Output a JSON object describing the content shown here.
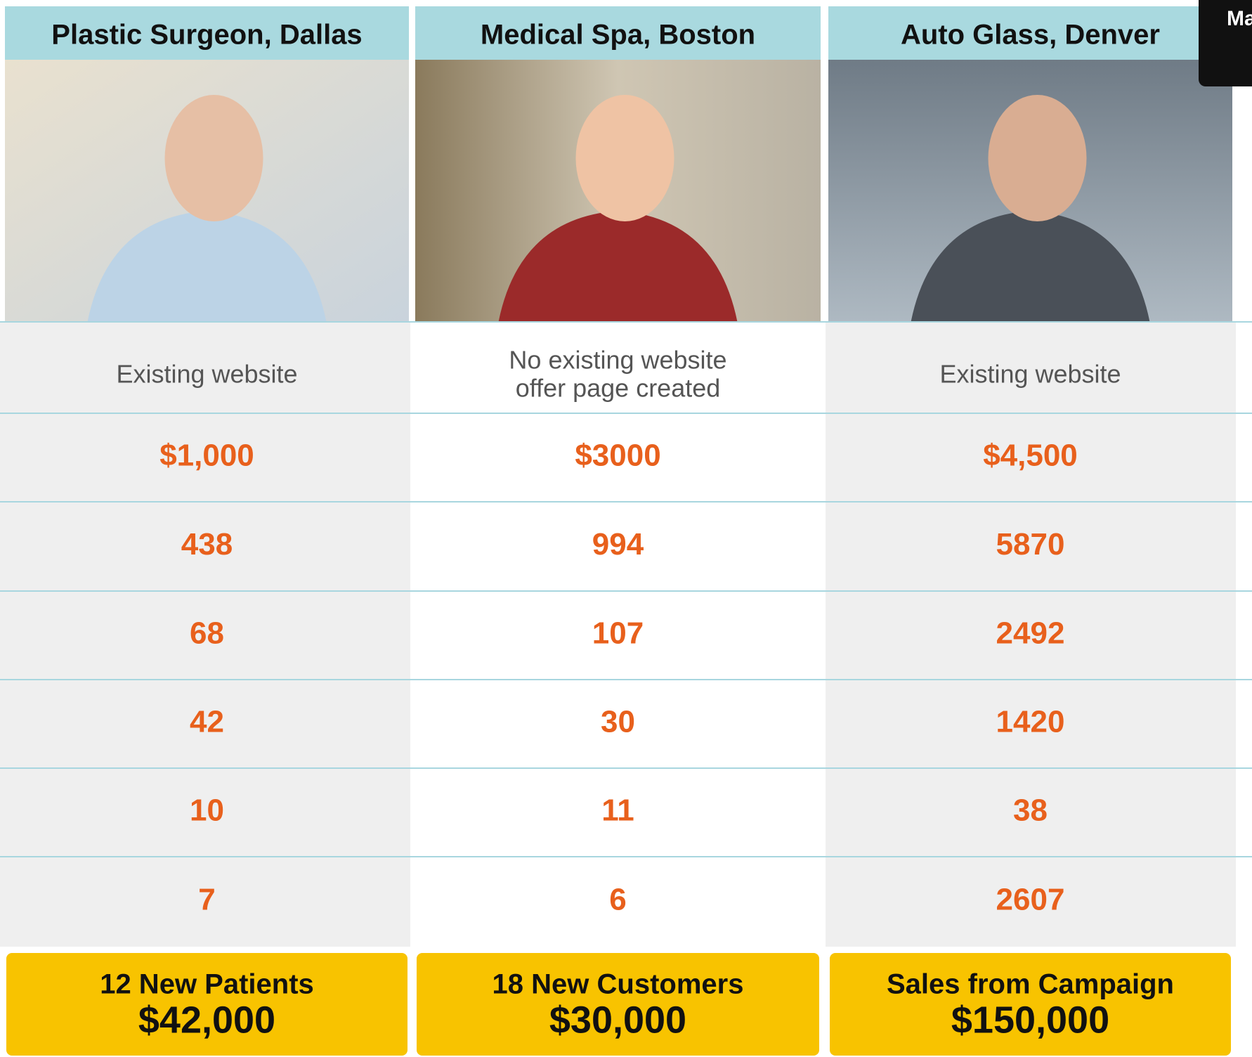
{
  "columns": [
    {
      "title": "Plastic Surgeon, Dallas",
      "description": [
        "Existing website"
      ],
      "values": [
        "$1,000",
        "438",
        "68",
        "42",
        "10",
        "7"
      ],
      "result": [
        "12 New Patients",
        "$42,000"
      ]
    },
    {
      "title": "Medical Spa, Boston",
      "description": [
        "No existing website",
        "offer page created"
      ],
      "values": [
        "$3000",
        "994",
        "107",
        "30",
        "11",
        "6"
      ],
      "result": [
        "18 New Customers",
        "$30,000"
      ]
    },
    {
      "title": "Auto Glass, Denver",
      "description": [
        "Existing website"
      ],
      "values": [
        "$4,500",
        "5870",
        "2492",
        "1420",
        "38",
        "2607"
      ],
      "result": [
        "Sales from Campaign",
        "$150,000"
      ]
    }
  ],
  "corner_tab": "Ma"
}
